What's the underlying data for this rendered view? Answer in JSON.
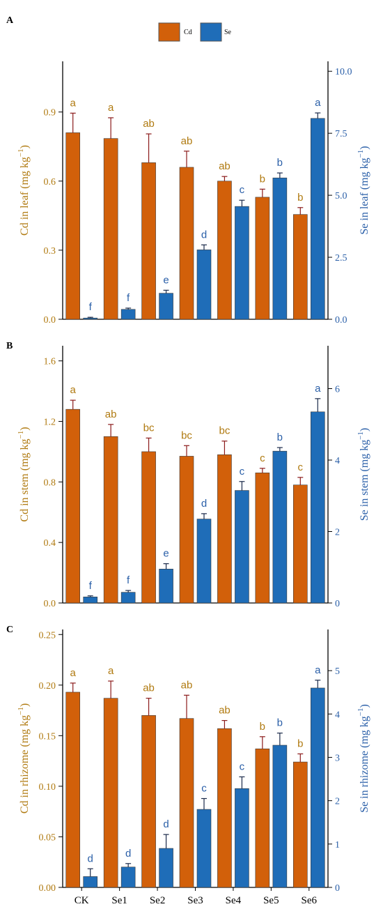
{
  "colors": {
    "cd_bar": "#D2600A",
    "se_bar": "#1F6DB8",
    "cd_text": "#B07A10",
    "se_text": "#2A5FA8",
    "cd_error": "#8B1A1A",
    "se_error": "#1B2A4A",
    "axis": "#000000"
  },
  "legend": {
    "items": [
      "Cd",
      "Se"
    ],
    "placement": "top-center"
  },
  "chart_data": [
    {
      "type": "bar",
      "panel_label": "A",
      "categories": [
        "CK",
        "Se1",
        "Se2",
        "Se3",
        "Se4",
        "Se5",
        "Se6"
      ],
      "show_categories": false,
      "ylabel_left_main": "Cd in leaf (mg kg",
      "ylabel_right_main": "Se in leaf (mg kg",
      "ylabel_unit_exp": "−1",
      "ylabel_close": ")",
      "ylim_left": [
        0,
        1.12
      ],
      "ylim_right": [
        0,
        10.4
      ],
      "ticks_left": [
        0.0,
        0.3,
        0.6,
        0.9
      ],
      "ticks_left_labels": [
        "0.0",
        "0.3",
        "0.6",
        "0.9"
      ],
      "ticks_right": [
        0.0,
        2.5,
        5.0,
        7.5,
        10.0
      ],
      "ticks_right_labels": [
        "0.0",
        "2.5",
        "5.0",
        "7.5",
        "10.0"
      ],
      "series": [
        {
          "name": "Cd",
          "axis": "left",
          "values": [
            0.81,
            0.785,
            0.68,
            0.66,
            0.6,
            0.53,
            0.455
          ],
          "errors": [
            0.085,
            0.09,
            0.125,
            0.07,
            0.02,
            0.035,
            0.03
          ],
          "letters": [
            "a",
            "a",
            "ab",
            "ab",
            "ab",
            "b",
            "b"
          ]
        },
        {
          "name": "Se",
          "axis": "right",
          "values": [
            0.05,
            0.4,
            1.05,
            2.8,
            4.55,
            5.7,
            8.1
          ],
          "errors": [
            0.03,
            0.05,
            0.12,
            0.2,
            0.25,
            0.2,
            0.22
          ],
          "letters": [
            "f",
            "f",
            "e",
            "d",
            "c",
            "b",
            "a"
          ]
        }
      ]
    },
    {
      "type": "bar",
      "panel_label": "B",
      "categories": [
        "CK",
        "Se1",
        "Se2",
        "Se3",
        "Se4",
        "Se5",
        "Se6"
      ],
      "show_categories": false,
      "ylabel_left_main": "Cd in stem (mg kg",
      "ylabel_right_main": "Se in stem (mg kg",
      "ylabel_unit_exp": "−1",
      "ylabel_close": ")",
      "ylim_left": [
        0,
        1.7
      ],
      "ylim_right": [
        0,
        7.2
      ],
      "ticks_left": [
        0.0,
        0.4,
        0.8,
        1.2,
        1.6
      ],
      "ticks_left_labels": [
        "0.0",
        "0.4",
        "0.8",
        "1.2",
        "1.6"
      ],
      "ticks_right": [
        0,
        2,
        4,
        6
      ],
      "ticks_right_labels": [
        "0",
        "2",
        "4",
        "6"
      ],
      "series": [
        {
          "name": "Cd",
          "axis": "left",
          "values": [
            1.28,
            1.1,
            1.0,
            0.97,
            0.98,
            0.86,
            0.78
          ],
          "errors": [
            0.06,
            0.08,
            0.09,
            0.07,
            0.09,
            0.03,
            0.05
          ],
          "letters": [
            "a",
            "ab",
            "bc",
            "bc",
            "bc",
            "c",
            "c"
          ]
        },
        {
          "name": "Se",
          "axis": "right",
          "values": [
            0.17,
            0.3,
            0.95,
            2.35,
            3.15,
            4.25,
            5.35
          ],
          "errors": [
            0.03,
            0.05,
            0.15,
            0.15,
            0.25,
            0.1,
            0.37
          ],
          "letters": [
            "f",
            "f",
            "e",
            "d",
            "c",
            "b",
            "a"
          ]
        }
      ]
    },
    {
      "type": "bar",
      "panel_label": "C",
      "categories": [
        "CK",
        "Se1",
        "Se2",
        "Se3",
        "Se4",
        "Se5",
        "Se6"
      ],
      "show_categories": true,
      "ylabel_left_main": "Cd in rhizome (mg kg",
      "ylabel_right_main": "Se in rhizome (mg kg",
      "ylabel_unit_exp": "−1",
      "ylabel_close": ")",
      "ylim_left": [
        0,
        0.255
      ],
      "ylim_right": [
        0,
        5.95
      ],
      "ticks_left": [
        0.0,
        0.05,
        0.1,
        0.15,
        0.2,
        0.25
      ],
      "ticks_left_labels": [
        "0.00",
        "0.05",
        "0.10",
        "0.15",
        "0.20",
        "0.25"
      ],
      "ticks_right": [
        0,
        1,
        2,
        3,
        4,
        5
      ],
      "ticks_right_labels": [
        "0",
        "1",
        "2",
        "3",
        "4",
        "5"
      ],
      "series": [
        {
          "name": "Cd",
          "axis": "left",
          "values": [
            0.193,
            0.187,
            0.17,
            0.167,
            0.157,
            0.137,
            0.124
          ],
          "errors": [
            0.009,
            0.017,
            0.017,
            0.023,
            0.008,
            0.012,
            0.008
          ],
          "letters": [
            "a",
            "a",
            "ab",
            "ab",
            "ab",
            "b",
            "b"
          ]
        },
        {
          "name": "Se",
          "axis": "right",
          "values": [
            0.25,
            0.47,
            0.9,
            1.8,
            2.28,
            3.28,
            4.6
          ],
          "errors": [
            0.18,
            0.08,
            0.32,
            0.25,
            0.27,
            0.28,
            0.18
          ],
          "letters": [
            "d",
            "d",
            "d",
            "c",
            "c",
            "b",
            "a"
          ]
        }
      ]
    }
  ]
}
